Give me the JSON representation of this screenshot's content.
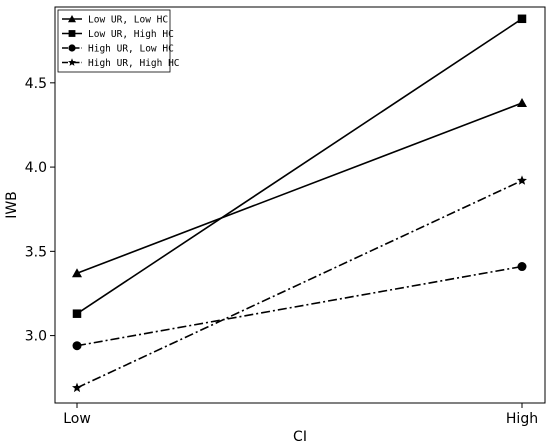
{
  "chart_data": {
    "type": "line",
    "title": "",
    "xlabel": "CI",
    "ylabel": "IWB",
    "categories": [
      "Low",
      "High"
    ],
    "ylim": [
      2.6,
      4.95
    ],
    "yticks": [
      "3.0",
      "3.5",
      "4.0",
      "4.5"
    ],
    "ytick_values": [
      3.0,
      3.5,
      4.0,
      4.5
    ],
    "grid": false,
    "legend_position": "top-left",
    "series": [
      {
        "name": "Low UR, Low HC",
        "values": [
          3.37,
          4.38
        ],
        "marker": "triangle",
        "dash": "solid"
      },
      {
        "name": "Low UR, High HC",
        "values": [
          3.13,
          4.88
        ],
        "marker": "square",
        "dash": "solid"
      },
      {
        "name": "High UR, Low HC",
        "values": [
          2.94,
          3.41
        ],
        "marker": "circle",
        "dash": "dashdot"
      },
      {
        "name": "High UR, High HC",
        "values": [
          2.69,
          3.92
        ],
        "marker": "star",
        "dash": "dashdot"
      }
    ],
    "colors": {
      "line": "#000000",
      "background": "#ffffff"
    }
  }
}
